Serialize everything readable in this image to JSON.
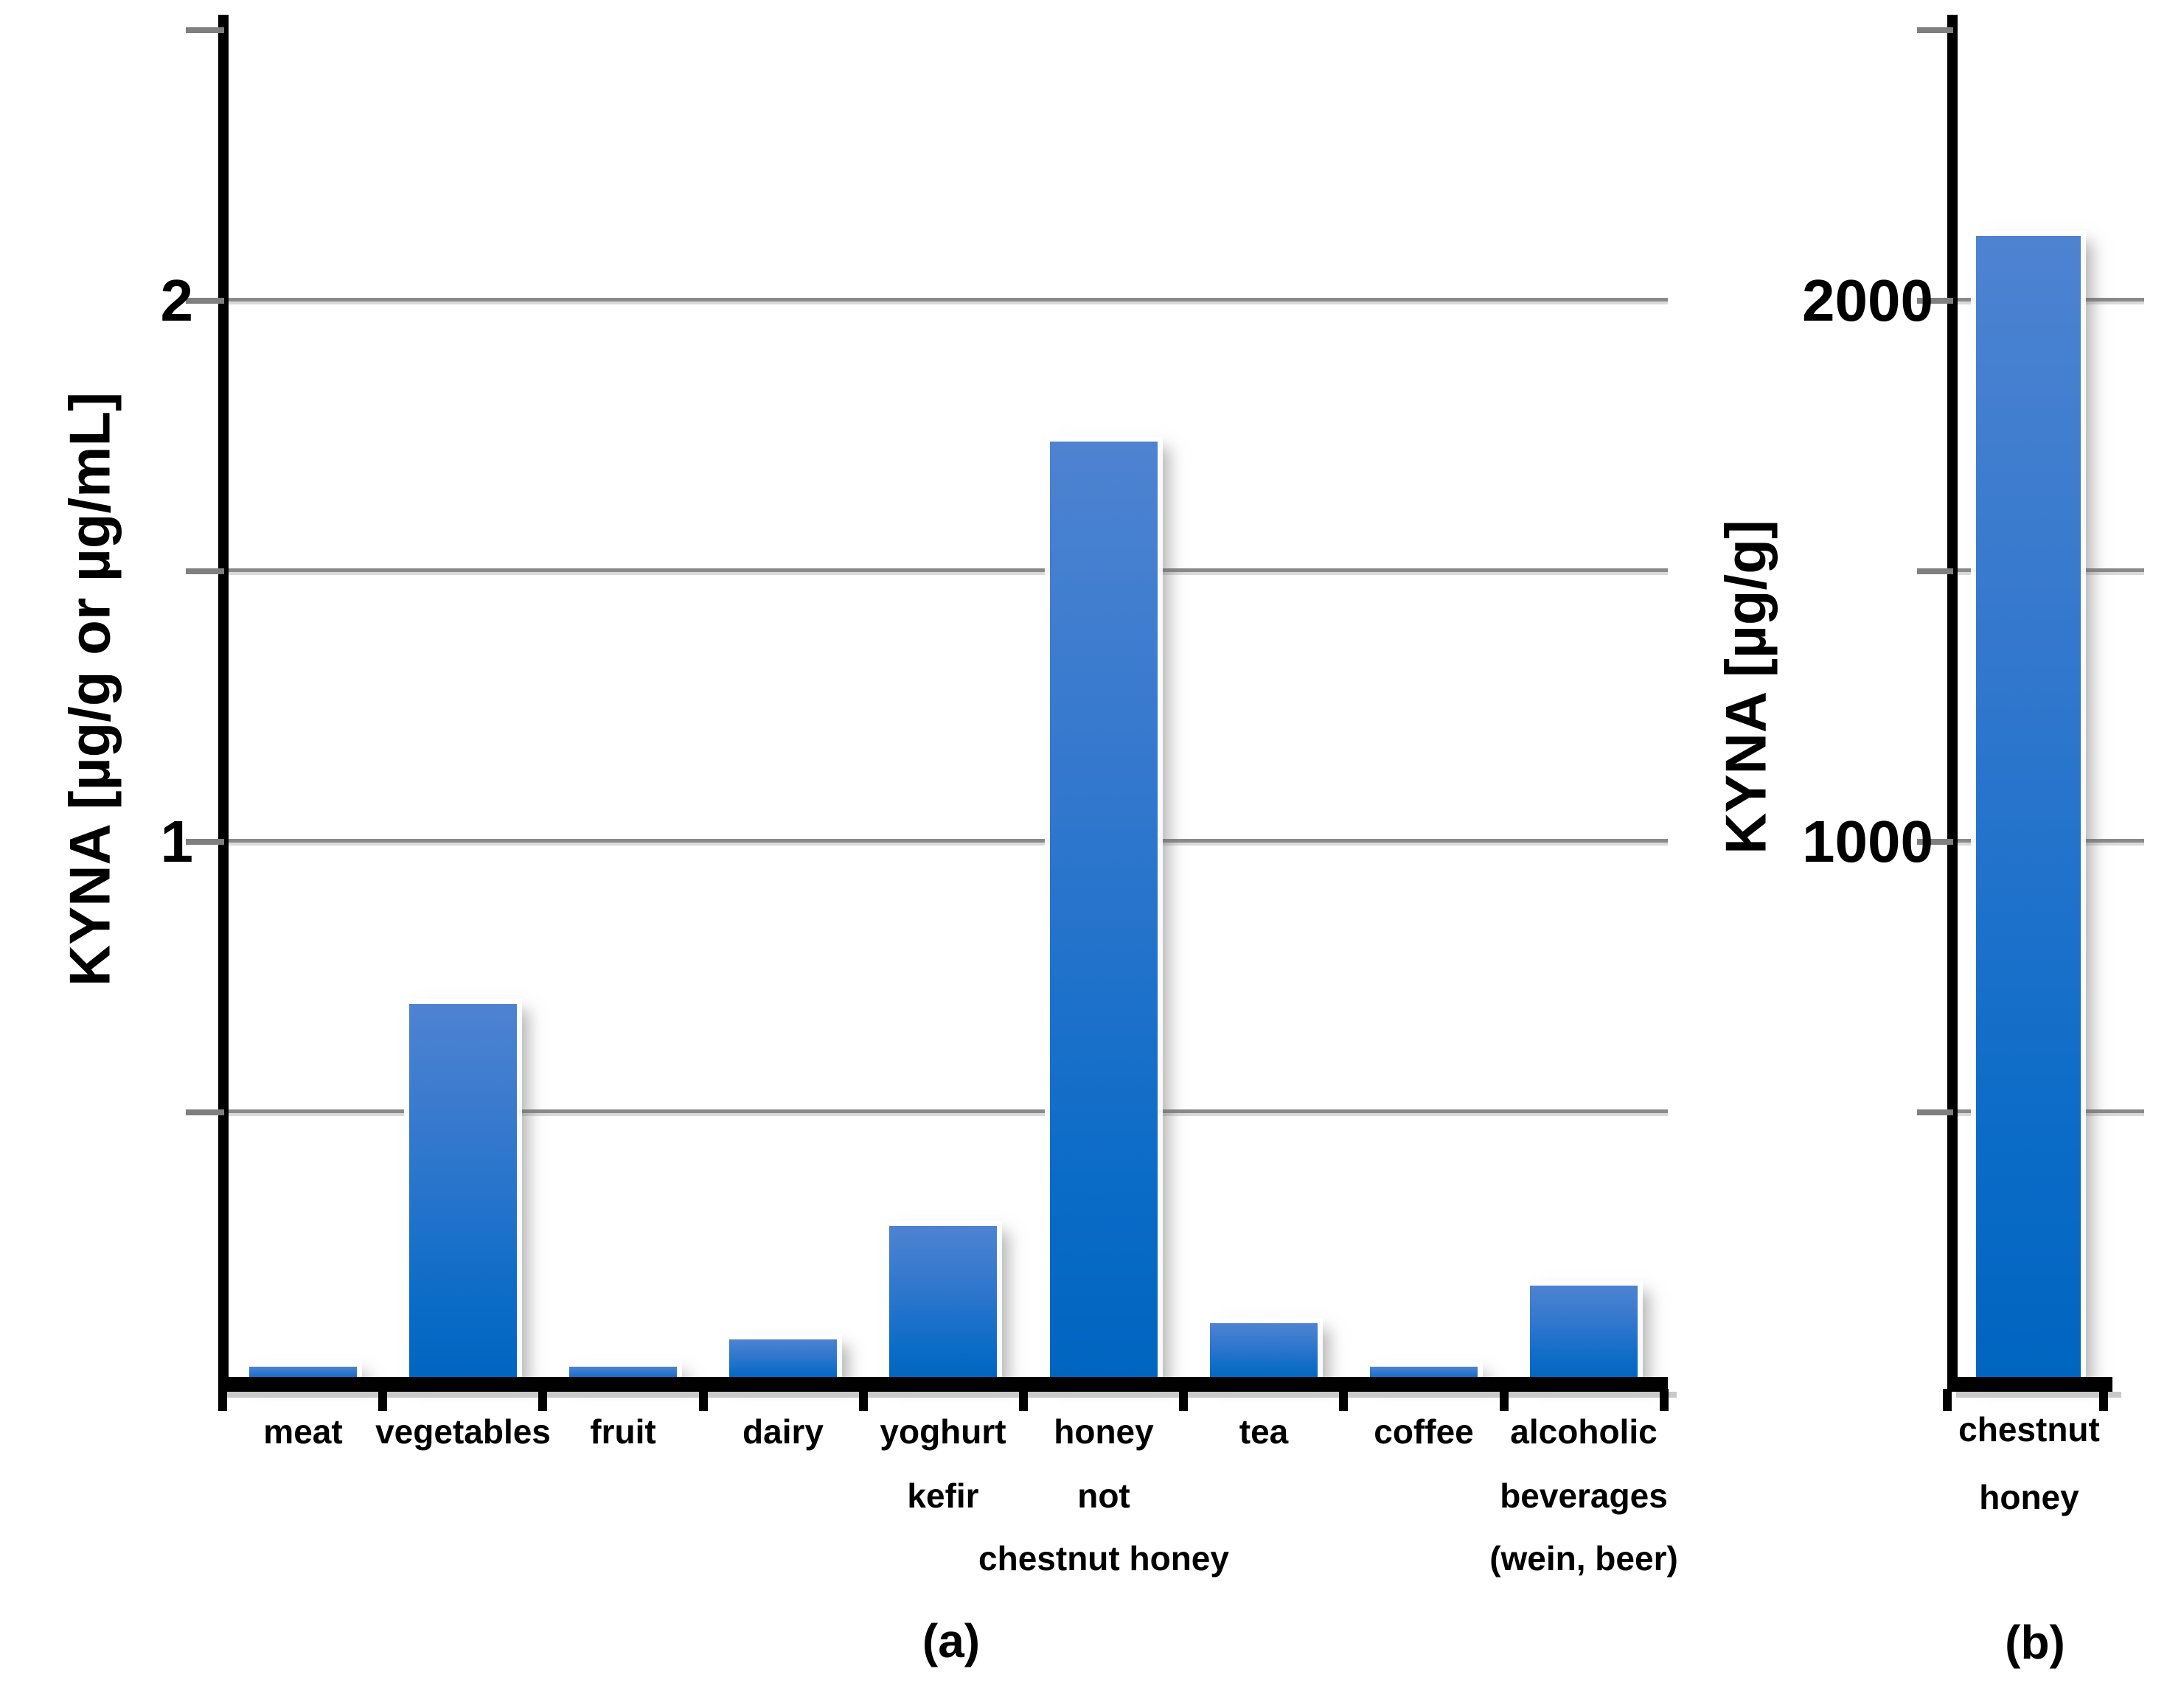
{
  "figure": {
    "background": "#ffffff",
    "bar_color_top": "#4e83d1",
    "bar_color_bottom": "#0065c0",
    "gridline_color": "#8a8a8a",
    "gridline_shadow_color": "#dadada",
    "axis_color": "#000000",
    "tick_color": "#7f7f7f"
  },
  "chart_data": [
    {
      "id": "a",
      "type": "bar",
      "caption": "(a)",
      "ylabel": "KYNA [µg/g or µg/mL]",
      "categories": [
        [
          "meat"
        ],
        [
          "vegetables"
        ],
        [
          "fruit"
        ],
        [
          "dairy"
        ],
        [
          "yoghurt",
          "kefir"
        ],
        [
          "honey",
          "not",
          "chestnut honey"
        ],
        [
          "tea"
        ],
        [
          "coffee"
        ],
        [
          "alcoholic",
          "beverages",
          "(wein, beer)"
        ]
      ],
      "values": [
        0.03,
        0.7,
        0.03,
        0.08,
        0.29,
        1.74,
        0.11,
        0.03,
        0.18
      ],
      "ylim": [
        0,
        2.55
      ],
      "yticks": [
        0.5,
        1.0,
        1.5,
        2.0,
        2.5
      ],
      "gridlines": [
        0.5,
        1.0,
        1.5,
        2.0
      ],
      "ytick_labels": [
        {
          "value": 1,
          "label": "1"
        },
        {
          "value": 2,
          "label": "2"
        }
      ],
      "legend": "none",
      "grid": "horizontal"
    },
    {
      "id": "b",
      "type": "bar",
      "caption": "(b)",
      "ylabel": "KYNA [µg/g]",
      "categories": [
        [
          "chestnut",
          "honey"
        ]
      ],
      "values": [
        2120
      ],
      "ylim": [
        0,
        2550
      ],
      "yticks": [
        500,
        1000,
        1500,
        2000,
        2500
      ],
      "gridlines": [
        500,
        1000,
        1500,
        2000
      ],
      "ytick_labels": [
        {
          "value": 1000,
          "label": "1000"
        },
        {
          "value": 2000,
          "label": "2000"
        }
      ],
      "legend": "none",
      "grid": "horizontal"
    }
  ]
}
